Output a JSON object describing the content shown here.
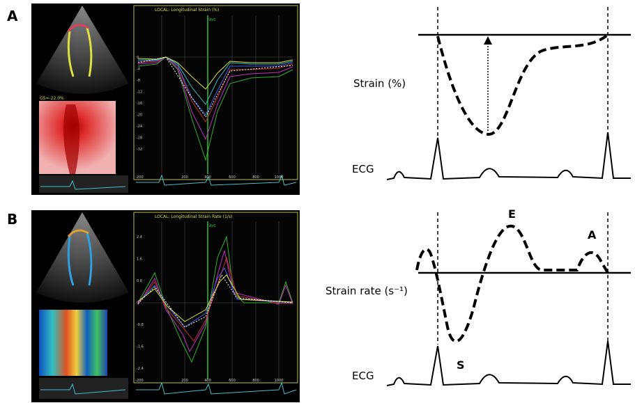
{
  "panels": [
    {
      "letter": "A",
      "screen": {
        "title": "LOCAL: Longitudinal Strain (%)",
        "marker": "AVC",
        "measure": "GS=-22.0%",
        "yticks": [
          "0",
          "-4",
          "-8",
          "-12",
          "-16",
          "-20",
          "-24",
          "-28",
          "-32"
        ],
        "xticks": [
          "-200",
          "200",
          "400",
          "600",
          "800",
          "1000"
        ]
      },
      "schematic": {
        "ylabel": "Strain (%)",
        "ecg": "ECG"
      }
    },
    {
      "letter": "B",
      "screen": {
        "title": "LOCAL: Longitudinal Strain Rate (1/s)",
        "marker": "AVC",
        "yticks": [
          "2.4",
          "1.6",
          "0.8",
          "0",
          "-0.8",
          "-1.6",
          "-2.4"
        ],
        "xticks": [
          "-200",
          "200",
          "400",
          "600",
          "800",
          "1000"
        ]
      },
      "schematic": {
        "ylabel": "Strain rate (s⁻¹)",
        "ecg": "ECG",
        "waves": [
          "E",
          "A",
          "S"
        ]
      }
    }
  ]
}
